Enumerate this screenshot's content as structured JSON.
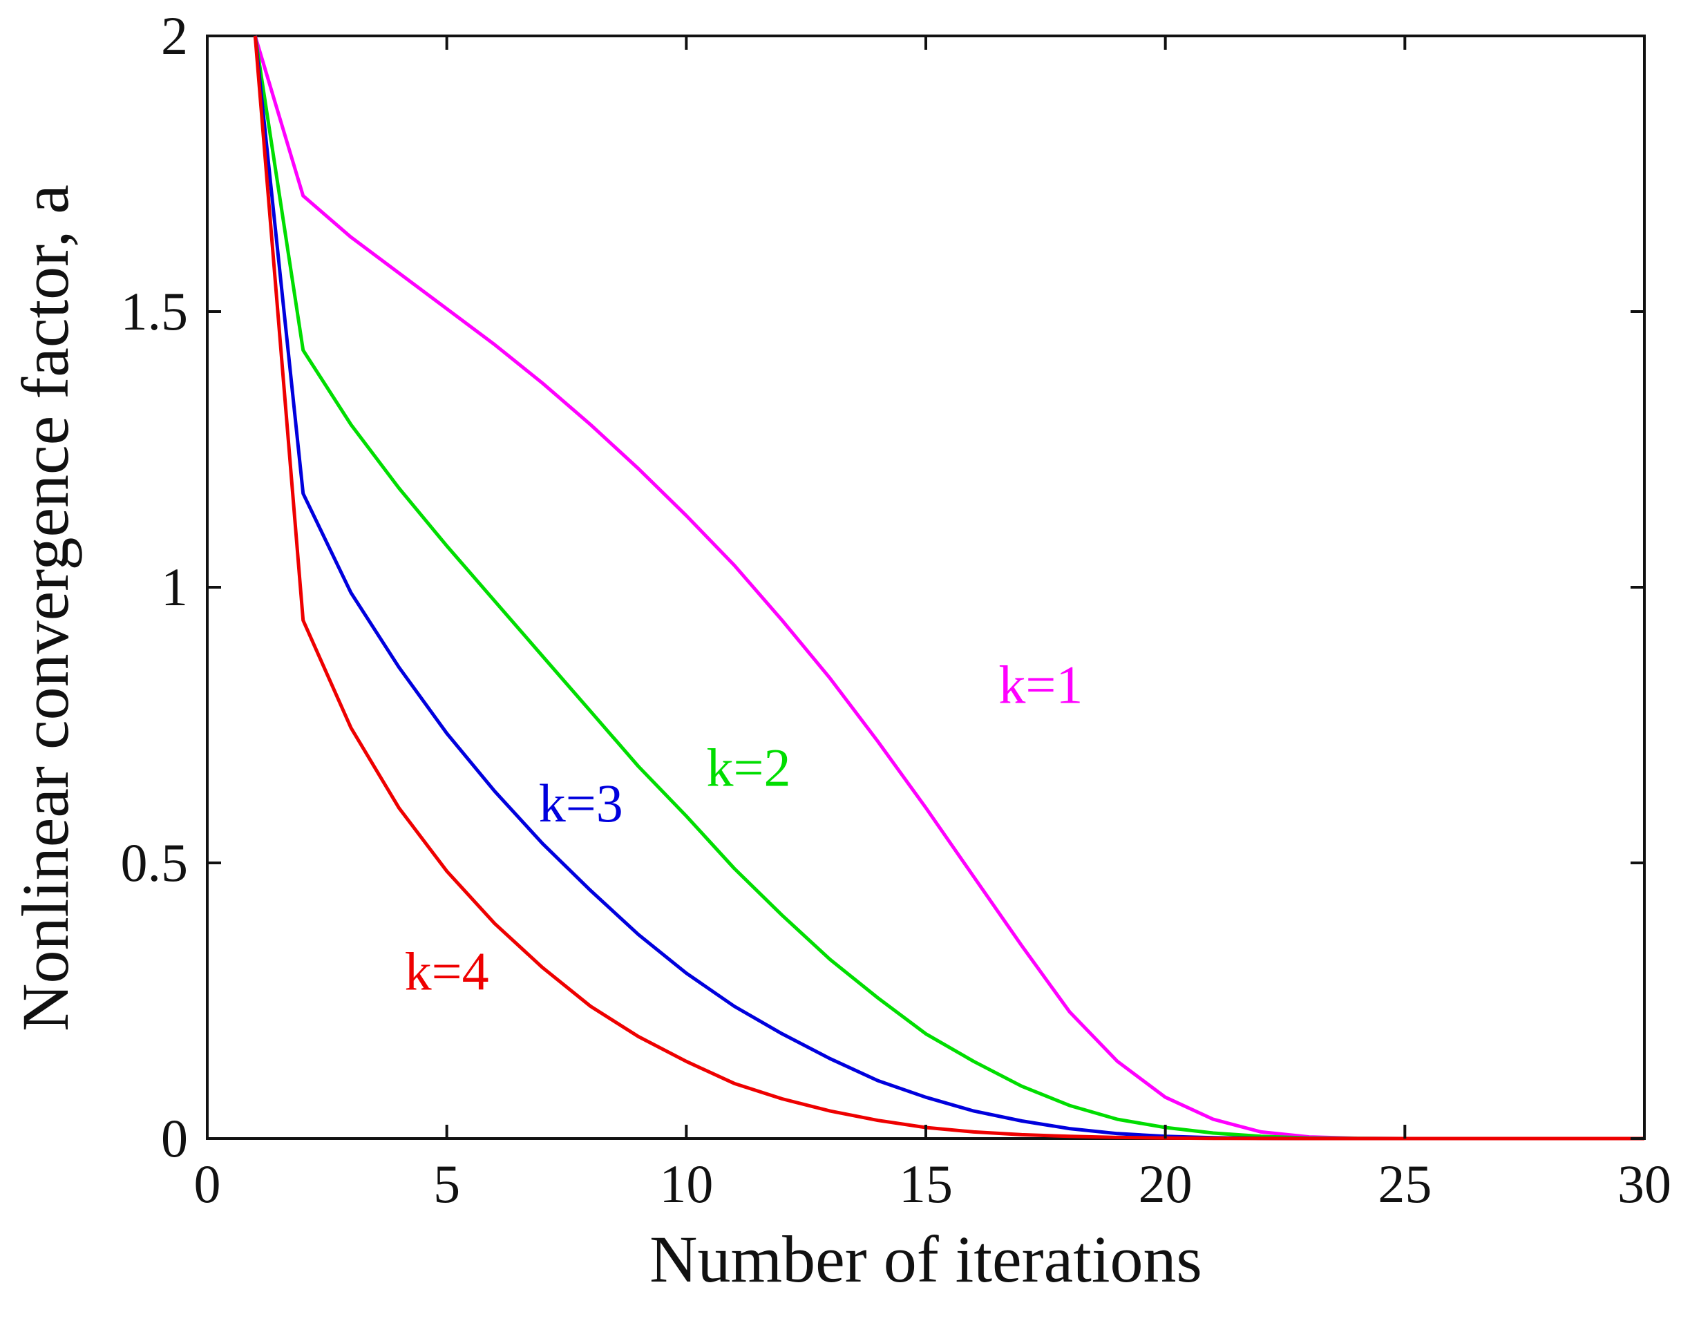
{
  "chart_data": {
    "type": "line",
    "title": "",
    "xlabel": "Number of iterations",
    "ylabel": "Nonlinear convergence factor, a",
    "xlim": [
      0,
      30
    ],
    "ylim": [
      0,
      2
    ],
    "xticks": [
      0,
      5,
      10,
      15,
      20,
      25,
      30
    ],
    "yticks": [
      0,
      0.5,
      1,
      1.5,
      2
    ],
    "xtick_labels": [
      "0",
      "5",
      "10",
      "15",
      "20",
      "25",
      "30"
    ],
    "ytick_labels": [
      "0",
      "0.5",
      "1",
      "1.5",
      "2"
    ],
    "grid": false,
    "legend": "none",
    "x": [
      1,
      2,
      3,
      4,
      5,
      6,
      7,
      8,
      9,
      10,
      11,
      12,
      13,
      14,
      15,
      16,
      17,
      18,
      19,
      20,
      21,
      22,
      23,
      24,
      25,
      26,
      27,
      28,
      29,
      30
    ],
    "series": [
      {
        "name": "k=1",
        "color": "#ff00ff",
        "values": [
          2.0,
          1.71,
          1.635,
          1.57,
          1.505,
          1.44,
          1.37,
          1.295,
          1.215,
          1.13,
          1.04,
          0.94,
          0.835,
          0.72,
          0.6,
          0.475,
          0.35,
          0.23,
          0.14,
          0.075,
          0.035,
          0.012,
          0.003,
          0.0005,
          0.0,
          0.0,
          0.0,
          0.0,
          0.0,
          0.0
        ]
      },
      {
        "name": "k=2",
        "color": "#00dd00",
        "values": [
          2.0,
          1.43,
          1.295,
          1.18,
          1.075,
          0.975,
          0.875,
          0.775,
          0.675,
          0.585,
          0.49,
          0.405,
          0.325,
          0.255,
          0.19,
          0.14,
          0.095,
          0.06,
          0.035,
          0.02,
          0.01,
          0.004,
          0.001,
          0.0003,
          0.0,
          0.0,
          0.0,
          0.0,
          0.0,
          0.0
        ]
      },
      {
        "name": "k=3",
        "color": "#0000dd",
        "values": [
          2.0,
          1.17,
          0.99,
          0.855,
          0.735,
          0.63,
          0.535,
          0.45,
          0.37,
          0.3,
          0.24,
          0.19,
          0.145,
          0.105,
          0.075,
          0.05,
          0.032,
          0.018,
          0.009,
          0.004,
          0.0015,
          0.0005,
          0.0001,
          0.0,
          0.0,
          0.0,
          0.0,
          0.0,
          0.0,
          0.0
        ]
      },
      {
        "name": "k=4",
        "color": "#ee0000",
        "values": [
          2.0,
          0.94,
          0.745,
          0.6,
          0.485,
          0.39,
          0.31,
          0.24,
          0.185,
          0.14,
          0.1,
          0.072,
          0.05,
          0.033,
          0.02,
          0.012,
          0.007,
          0.004,
          0.002,
          0.001,
          0.0004,
          0.0001,
          0.0,
          0.0,
          0.0,
          0.0,
          0.0,
          0.0,
          0.0,
          0.0
        ]
      }
    ],
    "annotations": [
      {
        "text": "k=1",
        "x": 17.4,
        "y": 0.79,
        "color": "#ff00ff"
      },
      {
        "text": "k=2",
        "x": 11.3,
        "y": 0.64,
        "color": "#00dd00"
      },
      {
        "text": "k=3",
        "x": 7.8,
        "y": 0.575,
        "color": "#0000dd"
      },
      {
        "text": "k=4",
        "x": 5.0,
        "y": 0.27,
        "color": "#ee0000"
      }
    ]
  }
}
